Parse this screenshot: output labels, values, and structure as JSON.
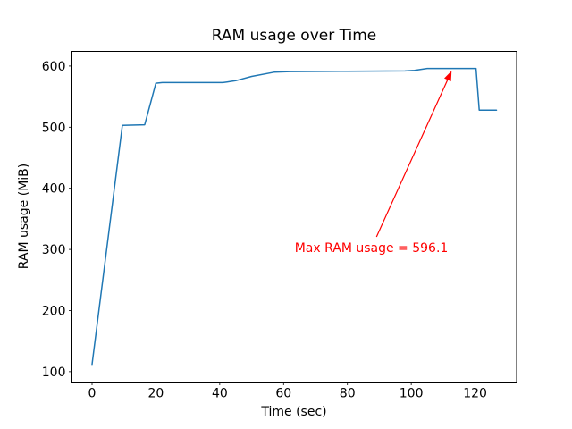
{
  "figure": {
    "background": "#ffffff"
  },
  "chart_data": {
    "type": "line",
    "title": "RAM usage over Time",
    "xlabel": "Time (sec)",
    "ylabel": "RAM usage (MiB)",
    "grid": false,
    "legend_position": "none",
    "xlim": [
      -6.3,
      133.0
    ],
    "ylim": [
      83,
      624
    ],
    "x_ticks": [
      0,
      20,
      40,
      60,
      80,
      100,
      120
    ],
    "y_ticks": [
      100,
      200,
      300,
      400,
      500,
      600
    ],
    "series": [
      {
        "name": "RAM usage",
        "color": "#1f77b4",
        "x": [
          0,
          9.5,
          16.5,
          20,
          22,
          41,
          45,
          50,
          57,
          62,
          80,
          98,
          101,
          105,
          119,
          120.3,
          121.3,
          126.7
        ],
        "y": [
          112,
          503,
          504,
          572,
          573,
          573,
          576,
          583,
          590,
          591,
          591.5,
          592,
          593,
          596,
          596.1,
          596,
          528,
          528
        ]
      }
    ],
    "annotation": {
      "text": "Max RAM usage = 596.1",
      "color": "#ff0000",
      "xy": [
        113,
        596.1
      ],
      "text_xy": [
        87.5,
        302
      ]
    },
    "max_value": 596.1
  }
}
